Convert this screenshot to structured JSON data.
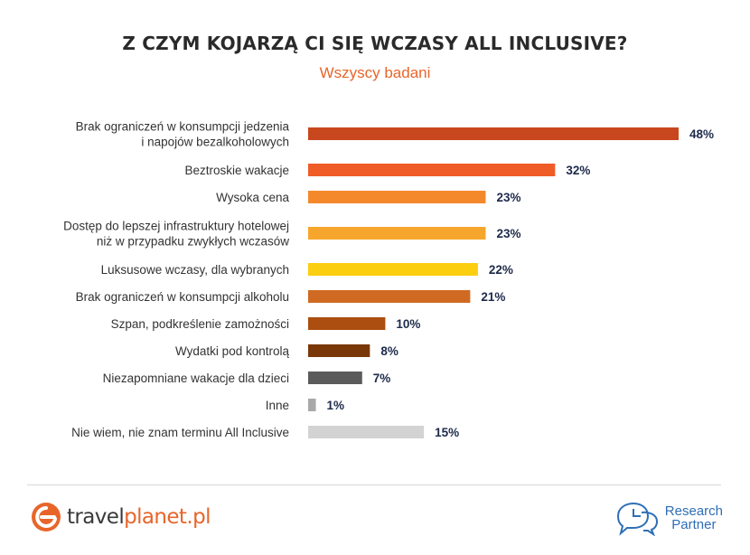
{
  "title": "Z CZYM KOJARZĄ CI SIĘ WCZASY ALL INCLUSIVE?",
  "subtitle": "Wszyscy badani",
  "chart_data": {
    "type": "bar",
    "orientation": "horizontal",
    "categories": [
      [
        "Brak ograniczeń w konsumpcji jedzenia",
        "i napojów bezalkoholowych"
      ],
      [
        "Beztroskie wakacje"
      ],
      [
        "Wysoka cena"
      ],
      [
        "Dostęp do lepszej infrastruktury hotelowej",
        "niż w przypadku zwykłych wczasów"
      ],
      [
        "Luksusowe wczasy, dla wybranych"
      ],
      [
        "Brak ograniczeń w konsumpcji alkoholu"
      ],
      [
        "Szpan, podkreślenie zamożności"
      ],
      [
        "Wydatki pod kontrolą"
      ],
      [
        "Niezapomniane wakacje dla dzieci"
      ],
      [
        "Inne"
      ],
      [
        "Nie wiem, nie znam terminu All Inclusive"
      ]
    ],
    "values": [
      48,
      32,
      23,
      23,
      22,
      21,
      10,
      8,
      7,
      1,
      15
    ],
    "value_labels": [
      "48%",
      "32%",
      "23%",
      "23%",
      "22%",
      "21%",
      "10%",
      "8%",
      "7%",
      "1%",
      "15%"
    ],
    "colors": [
      "#c9471f",
      "#ef5c28",
      "#f4892c",
      "#f7a62d",
      "#fcce10",
      "#d06a22",
      "#ab4e0f",
      "#7a3707",
      "#5b5b5b",
      "#a9a9a9",
      "#d3d3d3"
    ],
    "unit": "%",
    "xlim": [
      0,
      48
    ],
    "grid": false,
    "legend": "none"
  },
  "logos": {
    "left": {
      "part1": "travel",
      "part2": "planet.pl",
      "accent": "#e8652a"
    },
    "right": {
      "line1": "Research",
      "line2": "Partner",
      "color": "#2e6fb6"
    }
  }
}
